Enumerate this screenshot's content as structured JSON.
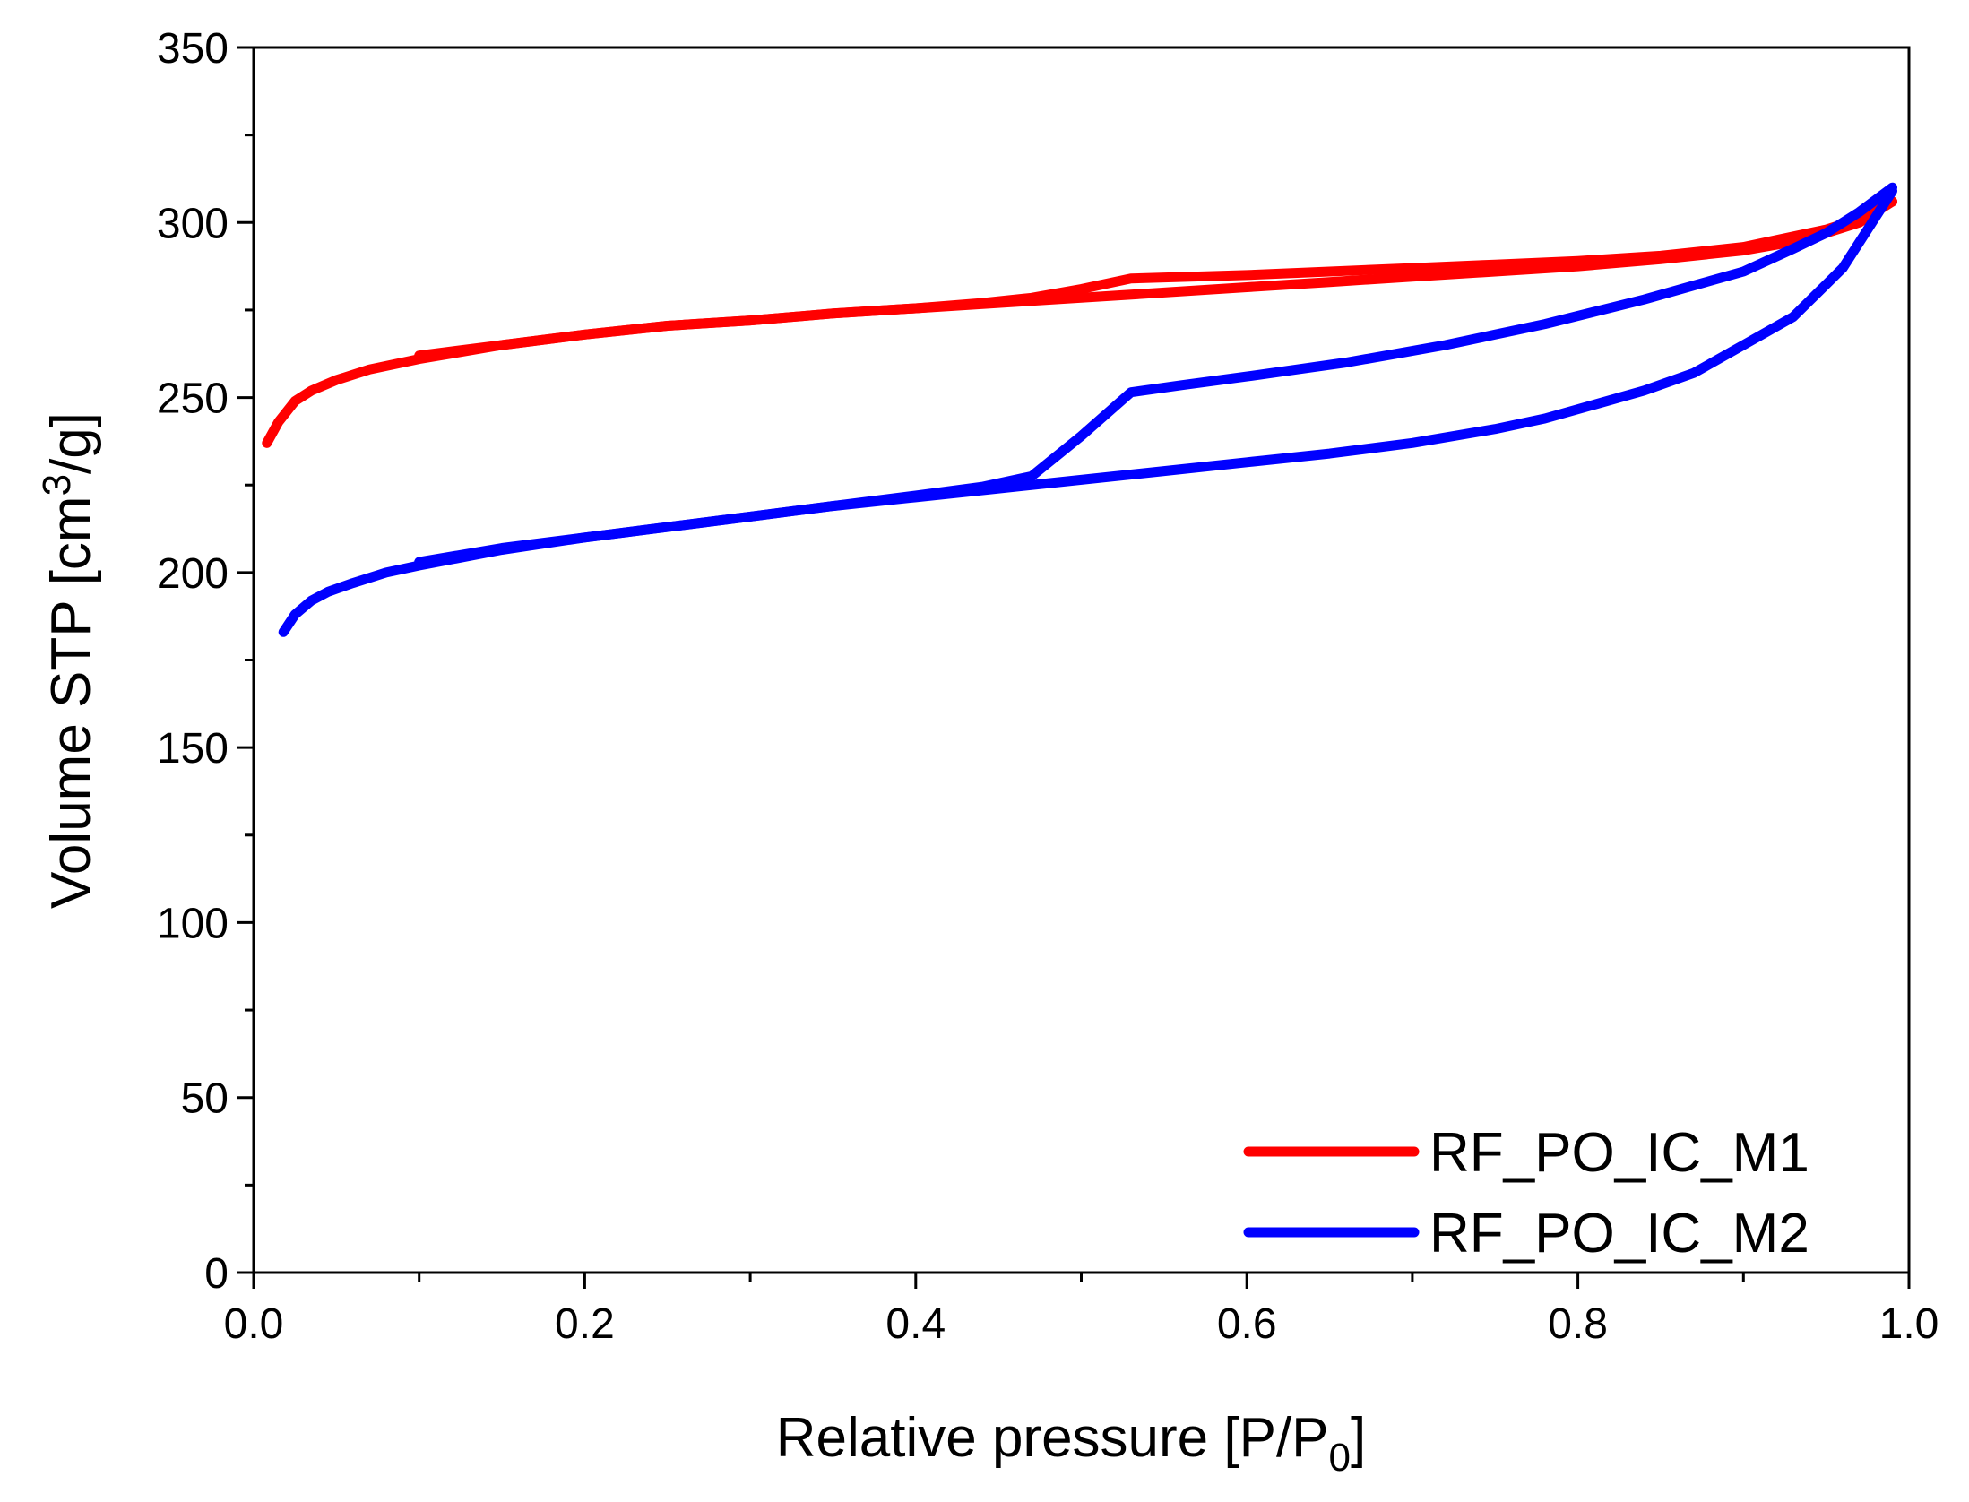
{
  "chart_data": {
    "type": "line",
    "title": "",
    "xlabel": "Relative pressure [P/P",
    "xlabel_sub": "0",
    "xlabel_end": "]",
    "ylabel": "Volume STP [cm",
    "ylabel_sup": "3",
    "ylabel_end": "/g]",
    "xlim": [
      0.0,
      1.0
    ],
    "ylim": [
      0,
      350
    ],
    "xticks": [
      0.0,
      0.2,
      0.4,
      0.6,
      0.8,
      1.0
    ],
    "xtick_labels": [
      "0.0",
      "0.2",
      "0.4",
      "0.6",
      "0.8",
      "1.0"
    ],
    "yticks": [
      0,
      50,
      100,
      150,
      200,
      250,
      300,
      350
    ],
    "ytick_labels": [
      "0",
      "50",
      "100",
      "150",
      "200",
      "250",
      "300",
      "350"
    ],
    "grid": false,
    "legend_position": "bottom-right",
    "series": [
      {
        "name": "RF_PO_IC_M1",
        "color": "#ff0000",
        "adsorption": {
          "x": [
            0.008,
            0.015,
            0.025,
            0.035,
            0.05,
            0.07,
            0.1,
            0.15,
            0.2,
            0.25,
            0.3,
            0.35,
            0.4,
            0.45,
            0.5,
            0.55,
            0.6,
            0.65,
            0.7,
            0.75,
            0.8,
            0.85,
            0.9,
            0.93,
            0.95,
            0.97,
            0.99
          ],
          "y": [
            237,
            243,
            249,
            252,
            255,
            258,
            261,
            265,
            268,
            270.5,
            272,
            274,
            275.5,
            277,
            278.5,
            280,
            281.5,
            283,
            284.5,
            286,
            287.5,
            289.5,
            292,
            294.5,
            297,
            300,
            306
          ]
        },
        "desorption": {
          "x": [
            0.99,
            0.97,
            0.95,
            0.93,
            0.9,
            0.85,
            0.8,
            0.75,
            0.7,
            0.65,
            0.6,
            0.53,
            0.5,
            0.47,
            0.44,
            0.4,
            0.35,
            0.3,
            0.25,
            0.2,
            0.15,
            0.1
          ],
          "y": [
            306,
            301,
            298,
            296,
            293,
            290.5,
            289,
            288,
            287,
            286,
            285,
            284,
            281,
            278.5,
            277,
            275.5,
            274,
            272,
            270.5,
            268,
            265,
            262
          ]
        }
      },
      {
        "name": "RF_PO_IC_M2",
        "color": "#0000ff",
        "adsorption": {
          "x": [
            0.018,
            0.025,
            0.035,
            0.045,
            0.06,
            0.08,
            0.1,
            0.15,
            0.2,
            0.25,
            0.3,
            0.35,
            0.4,
            0.45,
            0.5,
            0.55,
            0.6,
            0.65,
            0.7,
            0.75,
            0.78,
            0.81,
            0.84,
            0.87,
            0.9,
            0.93,
            0.96,
            0.99
          ],
          "y": [
            183,
            188,
            192,
            194.5,
            197,
            200,
            202,
            206.5,
            210,
            213,
            216,
            219,
            221.5,
            224,
            226.5,
            229,
            231.5,
            234,
            237,
            241,
            244,
            248,
            252,
            257,
            265,
            273,
            287,
            309
          ]
        },
        "desorption": {
          "x": [
            0.99,
            0.97,
            0.95,
            0.93,
            0.9,
            0.87,
            0.84,
            0.81,
            0.78,
            0.75,
            0.72,
            0.69,
            0.66,
            0.63,
            0.6,
            0.56,
            0.53,
            0.5,
            0.47,
            0.44,
            0.4,
            0.35,
            0.3,
            0.25,
            0.2,
            0.15,
            0.1
          ],
          "y": [
            310,
            303,
            297,
            292.5,
            286,
            282,
            278,
            274.5,
            271,
            268,
            265,
            262.5,
            260,
            258,
            256,
            253.5,
            251.5,
            239,
            227.5,
            224.5,
            222,
            219,
            216,
            213,
            210,
            207,
            203
          ]
        }
      }
    ]
  }
}
